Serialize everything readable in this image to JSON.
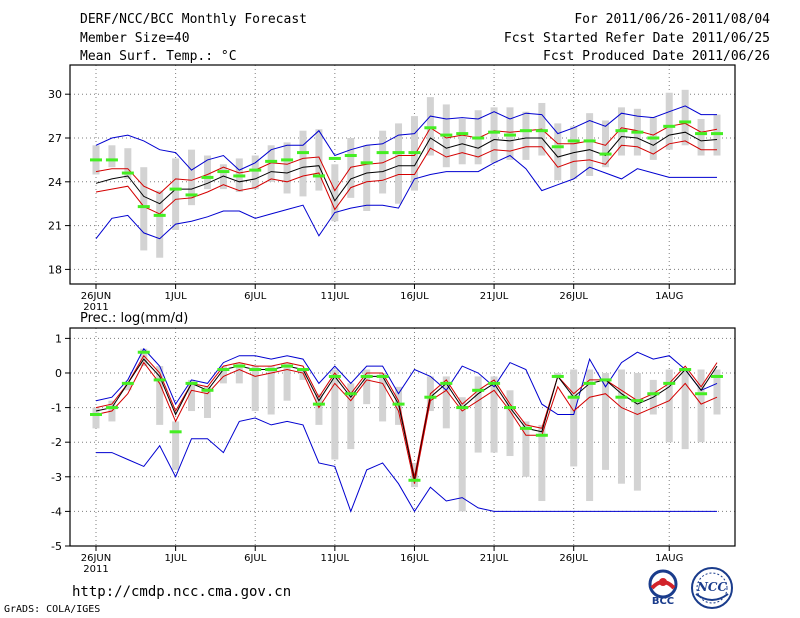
{
  "header": {
    "title": "DERF/NCC/BCC Monthly Forecast",
    "member_size": "Member Size=40",
    "variable": "Mean Surf. Temp.: °C",
    "period": "For 2011/06/26-2011/08/04",
    "refer_date": "Fcst Started Refer Date 2011/06/25",
    "produced_date": "Fcst Produced Date 2011/06/26"
  },
  "footer": {
    "url": "http://cmdp.ncc.cma.gov.cn",
    "credit": "GrADS: COLA/IGES",
    "logo_left_text": "BCC",
    "logo_right_text": "NCC"
  },
  "colors": {
    "ensemble_mean": "#000000",
    "spread": "#d40000",
    "envelope": "#0000d0",
    "median_tick": "#44ee22",
    "box": "#d3d3d3",
    "grid": "#7f7f7f"
  },
  "chart_data": [
    {
      "type": "line",
      "title": "Mean Surf. Temp.: °C",
      "ylim": [
        17,
        32
      ],
      "yticks": [
        18,
        21,
        24,
        27,
        30
      ],
      "xlim": [
        1,
        40
      ],
      "xticks": [
        {
          "day": 1,
          "label": "26JUN",
          "sublabel": "2011"
        },
        {
          "day": 6,
          "label": "1JUL"
        },
        {
          "day": 11,
          "label": "6JUL"
        },
        {
          "day": 16,
          "label": "11JUL"
        },
        {
          "day": 21,
          "label": "16JUL"
        },
        {
          "day": 26,
          "label": "21JUL"
        },
        {
          "day": 31,
          "label": "26JUL"
        },
        {
          "day": 37,
          "label": "1AUG"
        }
      ],
      "series": [
        {
          "name": "max",
          "values": [
            26.5,
            27,
            27.2,
            26.8,
            26.2,
            26,
            24.8,
            25.5,
            25.8,
            24.8,
            25.3,
            26.2,
            26.5,
            26.5,
            27.5,
            25.8,
            26.2,
            26.5,
            26.6,
            27.2,
            27.3,
            28.5,
            28.3,
            28.4,
            28.3,
            28.8,
            28.3,
            28.7,
            28.6,
            27.3,
            27.7,
            28.2,
            27.8,
            28.7,
            28.5,
            28.4,
            28.8,
            29.2,
            28.6,
            28.6
          ]
        },
        {
          "name": "upper",
          "values": [
            24.7,
            24.9,
            24.9,
            23.7,
            23.2,
            24.2,
            24.1,
            24.5,
            25,
            24.6,
            24.8,
            25.3,
            25.2,
            25.6,
            25.7,
            23.4,
            25,
            25.2,
            25.3,
            25.8,
            25.8,
            27.7,
            27,
            27.2,
            27,
            27.5,
            27.4,
            27.5,
            27.6,
            26.6,
            26.6,
            26.8,
            26.5,
            27.7,
            27.5,
            27.2,
            27.8,
            28,
            27.4,
            27.6
          ]
        },
        {
          "name": "mean",
          "values": [
            23.9,
            24.2,
            24.4,
            23,
            22.5,
            23.5,
            23.5,
            23.9,
            24.4,
            24,
            24.2,
            24.7,
            24.6,
            25,
            25.1,
            22.7,
            24.2,
            24.6,
            24.7,
            25.1,
            25.1,
            27,
            26.3,
            26.6,
            26.3,
            26.9,
            26.8,
            27,
            27,
            25.7,
            26,
            26.2,
            25.8,
            27.1,
            27,
            26.5,
            27.2,
            27.4,
            26.8,
            26.9
          ]
        },
        {
          "name": "lower",
          "values": [
            23.3,
            23.5,
            23.7,
            22.3,
            21.8,
            22.8,
            22.9,
            23.3,
            23.8,
            23.4,
            23.6,
            24.2,
            24,
            24.4,
            24.6,
            22.1,
            23.6,
            24,
            24.1,
            24.5,
            24.5,
            26.3,
            25.7,
            26,
            25.7,
            26.2,
            26.1,
            26.4,
            26.4,
            25,
            25.4,
            25.5,
            25.2,
            26.5,
            26.4,
            25.9,
            26.6,
            26.8,
            26.2,
            26.2
          ]
        },
        {
          "name": "min",
          "values": [
            20.1,
            21.5,
            21.7,
            20.5,
            20.1,
            21.1,
            21.3,
            21.6,
            22,
            22,
            21.5,
            21.8,
            22.1,
            22.4,
            20.3,
            21.9,
            22.2,
            22.4,
            22.4,
            22.2,
            24.2,
            24.5,
            24.7,
            24.7,
            24.7,
            25.3,
            25.8,
            24.9,
            23.4,
            23.8,
            24.2,
            25,
            24.6,
            24.2,
            24.9,
            24.6,
            24.3,
            24.3,
            24.3,
            24.3
          ]
        }
      ],
      "boxes": {
        "low": [
          24.5,
          25,
          24.2,
          19.3,
          18.8,
          20.7,
          22.4,
          23.5,
          23.5,
          23.3,
          23.5,
          24,
          23.2,
          23,
          23.4,
          21.3,
          22.9,
          22,
          23.2,
          22.5,
          23.4,
          25.8,
          25,
          25.2,
          25.2,
          25.3,
          25.5,
          25.5,
          25.8,
          24.1,
          24.2,
          24.4,
          25,
          25.8,
          25.8,
          25.5,
          26.2,
          26.5,
          25.8,
          25.8
        ],
        "high": [
          26.5,
          26.5,
          26.3,
          25,
          23.4,
          25.6,
          26.2,
          25.8,
          25.2,
          25.6,
          25.8,
          26.5,
          26.7,
          27.5,
          27.6,
          25.2,
          27,
          26.5,
          27.5,
          28,
          28.5,
          29.8,
          29.3,
          28.3,
          28.9,
          29.1,
          29.1,
          28.8,
          29.4,
          28,
          27.8,
          28.7,
          28.2,
          29.1,
          29,
          28.4,
          30.1,
          30.3,
          28.3,
          28.6
        ],
        "median": [
          25.5,
          25.5,
          24.6,
          22.3,
          21.7,
          23.5,
          23.1,
          24.3,
          24.7,
          24.4,
          24.8,
          25.4,
          25.5,
          26,
          24.4,
          25.6,
          25.8,
          25.3,
          26,
          26,
          26,
          27.7,
          27.2,
          27.3,
          27,
          27.4,
          27.2,
          27.5,
          27.5,
          26.4,
          26.8,
          26.8,
          25.9,
          27.5,
          27.4,
          27,
          27.8,
          28.1,
          27.3,
          27.3
        ]
      }
    },
    {
      "type": "line",
      "title": "Prec.: log(mm/d)",
      "ylim": [
        -5,
        1.3
      ],
      "yticks": [
        1,
        0,
        -1,
        -2,
        -3,
        -4,
        -5
      ],
      "xlim": [
        1,
        40
      ],
      "xticks": [
        {
          "day": 1,
          "label": "26JUN",
          "sublabel": "2011"
        },
        {
          "day": 6,
          "label": "1JUL"
        },
        {
          "day": 11,
          "label": "6JUL"
        },
        {
          "day": 16,
          "label": "11JUL"
        },
        {
          "day": 21,
          "label": "16JUL"
        },
        {
          "day": 26,
          "label": "21JUL"
        },
        {
          "day": 31,
          "label": "26JUL"
        },
        {
          "day": 37,
          "label": "1AUG"
        }
      ],
      "series": [
        {
          "name": "max",
          "values": [
            -0.8,
            -0.7,
            -0.2,
            0.7,
            0.2,
            -0.9,
            -0.2,
            -0.3,
            0.3,
            0.5,
            0.5,
            0.4,
            0.5,
            0.4,
            -0.3,
            0.2,
            -0.3,
            0.2,
            0.2,
            -0.6,
            0.1,
            -0.1,
            -0.5,
            0.2,
            0,
            -0.4,
            0.3,
            0.1,
            -0.9,
            -1.2,
            -1.2,
            0.4,
            -0.4,
            0.3,
            0.6,
            0.4,
            0.5,
            0.1,
            -0.5,
            -0.3
          ]
        },
        {
          "name": "upper",
          "values": [
            -1,
            -0.9,
            -0.3,
            0.5,
            0,
            -1.1,
            -0.3,
            -0.4,
            0.2,
            0.3,
            0.2,
            0.2,
            0.3,
            0.2,
            -0.7,
            0,
            -0.6,
            0,
            0,
            -0.8,
            -3,
            -0.6,
            -0.2,
            -0.9,
            -0.5,
            -0.2,
            -0.9,
            -1.5,
            -1.6,
            -0.1,
            -0.6,
            -0.2,
            -0.2,
            -0.5,
            -0.8,
            -0.6,
            -0.3,
            0.2,
            -0.4,
            0.3
          ]
        },
        {
          "name": "mean",
          "values": [
            -1.1,
            -1,
            -0.3,
            0.4,
            -0.1,
            -1.2,
            -0.3,
            -0.5,
            0.1,
            0.2,
            0.1,
            0.1,
            0.2,
            0.1,
            -0.8,
            -0.1,
            -0.7,
            -0.1,
            -0.1,
            -0.9,
            -3.1,
            -0.7,
            -0.3,
            -1,
            -0.6,
            -0.3,
            -1,
            -1.6,
            -1.7,
            -0.1,
            -0.7,
            -0.3,
            -0.2,
            -0.6,
            -0.9,
            -0.7,
            -0.4,
            0.1,
            -0.5,
            0.2
          ]
        },
        {
          "name": "lower",
          "values": [
            -1.2,
            -1.1,
            -0.6,
            0.3,
            -0.3,
            -1.4,
            -0.5,
            -0.6,
            -0.1,
            0.1,
            -0.1,
            0,
            0.1,
            0,
            -1,
            -0.3,
            -0.8,
            -0.2,
            -0.3,
            -1.1,
            -3.2,
            -0.8,
            -0.5,
            -1.1,
            -0.8,
            -0.5,
            -1.1,
            -1.8,
            -1.8,
            -0.4,
            -1.1,
            -0.7,
            -0.6,
            -1,
            -1.2,
            -1,
            -0.8,
            -0.3,
            -0.9,
            -0.7
          ]
        },
        {
          "name": "min",
          "values": [
            -2.3,
            -2.3,
            -2.5,
            -2.7,
            -2.1,
            -3,
            -1.9,
            -1.9,
            -2.3,
            -1.4,
            -1.3,
            -1.5,
            -1.4,
            -1.5,
            -2.6,
            -2.7,
            -4,
            -2.8,
            -2.6,
            -3.2,
            -4,
            -3.3,
            -3.7,
            -3.6,
            -3.9,
            -4,
            -4,
            -4,
            -4,
            -4,
            -4,
            -4,
            -4,
            -4,
            -4,
            -4,
            -4,
            -4,
            -4,
            -4
          ]
        }
      ],
      "boxes": {
        "low": [
          -1.6,
          -1.4,
          -0.5,
          0.2,
          -1.5,
          -2.8,
          -1.1,
          -1.3,
          -0.3,
          -0.3,
          -1.1,
          -1.2,
          -0.8,
          -0.2,
          -1.5,
          -2.5,
          -2.2,
          -0.9,
          -1.4,
          -1.5,
          -3.3,
          -1.1,
          -1.6,
          -4,
          -2.3,
          -2.3,
          -2.4,
          -3,
          -3.7,
          -0.1,
          -2.7,
          -3.7,
          -2.8,
          -3.2,
          -3.4,
          -1.2,
          -2,
          -2.2,
          -2,
          -1.2
        ],
        "high": [
          -1,
          -0.8,
          -0.3,
          0.7,
          0.2,
          -1.4,
          -0.2,
          -0.4,
          0.2,
          0.3,
          0.2,
          0.2,
          0.3,
          0.1,
          -0.6,
          0.1,
          -0.3,
          0.1,
          0,
          -0.4,
          -2.6,
          -0.1,
          -0.1,
          -0.7,
          -0.1,
          -0.1,
          -0.5,
          -1.4,
          -1.5,
          0,
          0.1,
          0.1,
          0,
          0.1,
          0,
          -0.2,
          0.1,
          0.1,
          0.1,
          0.1
        ],
        "median": [
          -1.2,
          -1,
          -0.3,
          0.6,
          -0.2,
          -1.7,
          -0.3,
          -0.5,
          0.1,
          0.2,
          0.1,
          0.1,
          0.2,
          0.1,
          -0.9,
          -0.1,
          -0.6,
          -0.1,
          -0.1,
          -0.9,
          -3.1,
          -0.7,
          -0.3,
          -1,
          -0.5,
          -0.3,
          -1,
          -1.6,
          -1.8,
          -0.1,
          -0.7,
          -0.3,
          -0.2,
          -0.7,
          -0.8,
          -0.6,
          -0.3,
          0.1,
          -0.6,
          -0.1
        ]
      }
    }
  ]
}
